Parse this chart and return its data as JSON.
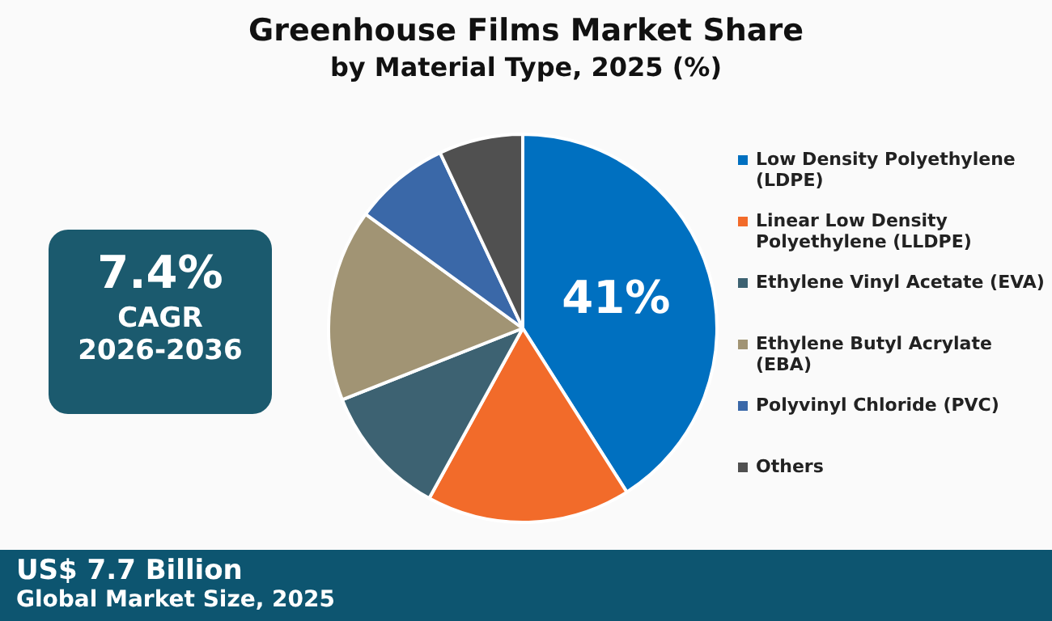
{
  "chart_data": {
    "type": "pie",
    "title": "Greenhouse Films Market Share",
    "subtitle": "by Material Type, 2025 (%)",
    "categories": [
      "Low Density Polyethylene (LDPE)",
      "Linear Low Density Polyethylene (LLDPE)",
      "Ethylene Vinyl Acetate (EVA)",
      "Ethylene Butyl Acrylate (EBA)",
      "Polyvinyl Chloride (PVC)",
      "Others"
    ],
    "values": [
      41,
      17,
      11,
      16,
      8,
      7
    ],
    "colors": [
      "#0070c0",
      "#f26b2a",
      "#3d6272",
      "#a19474",
      "#3a68a8",
      "#505050"
    ],
    "value_labels": [
      "41%",
      null,
      null,
      null,
      null,
      null
    ],
    "legend": "right",
    "annotations": [
      "7.4%",
      "CAGR",
      "2026-2036",
      "US$ 7.7 Billion",
      "Global Market Size, 2025"
    ]
  }
}
